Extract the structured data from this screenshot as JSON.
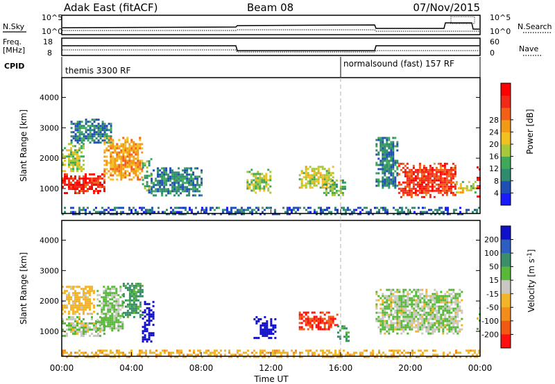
{
  "header": {
    "radar": "Adak East (fitACF)",
    "beam": "Beam 08",
    "date": "07/Nov/2015"
  },
  "top_panels": {
    "nsky_label": "N.Sky",
    "nsearch_label": "N.Search",
    "nsky_ticks": [
      "10^5",
      "10^0"
    ],
    "nsearch_ticks": [
      "10^5",
      "10^0"
    ],
    "freq_label_1": "Freq.",
    "freq_label_2": "[MHz]",
    "freq_ticks": [
      "18",
      "8"
    ],
    "nave_label": "Nave",
    "nave_ticks": [
      "60",
      "0"
    ],
    "cpid_label": "CPID",
    "modes": [
      {
        "label": "themis 3300 RF",
        "start_hour": 0
      },
      {
        "label": "normalsound (fast) 157 RF",
        "start_hour": 16
      }
    ]
  },
  "chart_data": [
    {
      "type": "heatmap",
      "title": "Power",
      "xlabel": "",
      "ylabel": "Slant Range [km]",
      "xlim": [
        0,
        24
      ],
      "ylim": [
        180,
        4650
      ],
      "yticks": [
        "1000",
        "2000",
        "3000",
        "4000"
      ],
      "colorbar": {
        "label": "Power [dB]",
        "ticks": [
          "4",
          "8",
          "12",
          "16",
          "20",
          "24",
          "28"
        ],
        "colors": [
          "#1a1aff",
          "#1f4fb4",
          "#2f8a6e",
          "#3fa85a",
          "#a8c83c",
          "#f2c020",
          "#f29a18",
          "#f26018",
          "#f22818",
          "#ff0000"
        ]
      },
      "regions": [
        {
          "t0": 0.0,
          "t1": 2.4,
          "r0": 850,
          "r1": 1500,
          "level": 28
        },
        {
          "t0": 0.0,
          "t1": 1.2,
          "r0": 1550,
          "r1": 2500,
          "level": 14
        },
        {
          "t0": 0.5,
          "t1": 2.8,
          "r0": 2500,
          "r1": 3300,
          "level": 8
        },
        {
          "t0": 2.4,
          "t1": 4.6,
          "r0": 1300,
          "r1": 2700,
          "level": 20
        },
        {
          "t0": 4.6,
          "t1": 5.1,
          "r0": 900,
          "r1": 2000,
          "level": 10
        },
        {
          "t0": 5.1,
          "t1": 8.0,
          "r0": 800,
          "r1": 1700,
          "level": 8
        },
        {
          "t0": 10.6,
          "t1": 12.0,
          "r0": 850,
          "r1": 1650,
          "level": 14
        },
        {
          "t0": 13.6,
          "t1": 15.6,
          "r0": 1050,
          "r1": 1750,
          "level": 16
        },
        {
          "t0": 15.0,
          "t1": 16.2,
          "r0": 800,
          "r1": 1300,
          "level": 12
        },
        {
          "t0": 18.0,
          "t1": 19.3,
          "r0": 1000,
          "r1": 2700,
          "level": 8
        },
        {
          "t0": 19.3,
          "t1": 22.6,
          "r0": 750,
          "r1": 1850,
          "level": 26
        },
        {
          "t0": 22.6,
          "t1": 23.9,
          "r0": 850,
          "r1": 1250,
          "level": 16
        },
        {
          "t0": 23.8,
          "t1": 24.0,
          "r0": 750,
          "r1": 1800,
          "level": 28
        },
        {
          "t0": 0.0,
          "t1": 24.0,
          "r0": 180,
          "r1": 400,
          "level": 6
        }
      ]
    },
    {
      "type": "heatmap",
      "title": "Velocity",
      "xlabel": "Time UT",
      "ylabel": "Slant Range [km]",
      "xlim": [
        0,
        24
      ],
      "ylim": [
        180,
        4650
      ],
      "xticks": [
        "00:00",
        "04:00",
        "08:00",
        "12:00",
        "16:00",
        "20:00",
        "00:00"
      ],
      "yticks": [
        "1000",
        "2000",
        "3000",
        "4000"
      ],
      "colorbar": {
        "label": "Velocity [m s^-1]",
        "ticks": [
          "200",
          "100",
          "50",
          "15",
          "-15",
          "-50",
          "-100",
          "-200"
        ],
        "colors": [
          "#1010c8",
          "#2d5fc0",
          "#3b8e6a",
          "#58b83a",
          "#c8c8c0",
          "#f2b428",
          "#f28c1a",
          "#f25a14",
          "#ff1010"
        ]
      },
      "regions": [
        {
          "t0": 0.0,
          "t1": 2.4,
          "r0": 850,
          "r1": 1500,
          "level": 0
        },
        {
          "t0": 0.0,
          "t1": 1.8,
          "r0": 1550,
          "r1": 2500,
          "level": -30
        },
        {
          "t0": 2.0,
          "t1": 3.5,
          "r0": 1000,
          "r1": 2500,
          "level": 10
        },
        {
          "t0": 3.5,
          "t1": 4.6,
          "r0": 1500,
          "r1": 2600,
          "level": 40
        },
        {
          "t0": 4.6,
          "t1": 5.3,
          "r0": 650,
          "r1": 2000,
          "level": 200
        },
        {
          "t0": 11.0,
          "t1": 12.3,
          "r0": 800,
          "r1": 1500,
          "level": 180
        },
        {
          "t0": 13.6,
          "t1": 15.8,
          "r0": 1050,
          "r1": 1650,
          "level": -150
        },
        {
          "t0": 15.8,
          "t1": 16.5,
          "r0": 700,
          "r1": 1200,
          "level": 40
        },
        {
          "t0": 18.0,
          "t1": 23.0,
          "r0": 900,
          "r1": 2400,
          "level": 0
        },
        {
          "t0": 23.8,
          "t1": 24.0,
          "r0": 900,
          "r1": 1800,
          "level": 0
        },
        {
          "t0": 0.0,
          "t1": 24.0,
          "r0": 180,
          "r1": 400,
          "level": -40
        }
      ]
    }
  ]
}
